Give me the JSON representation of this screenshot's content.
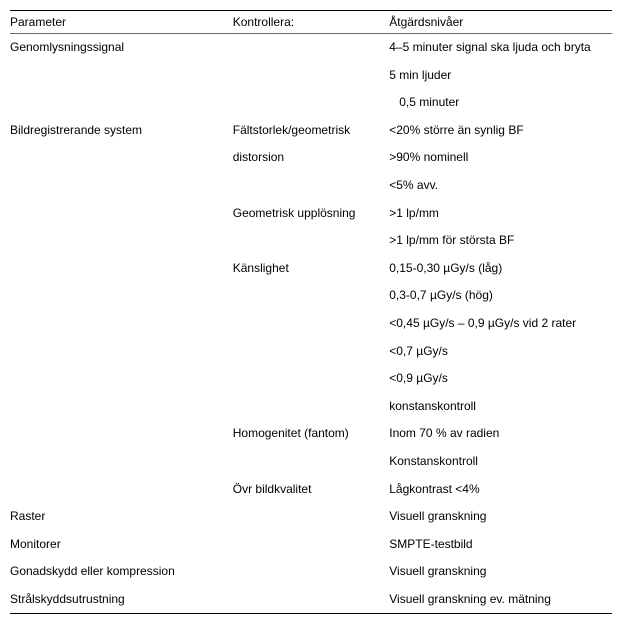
{
  "headers": {
    "parameter": "Parameter",
    "check": "Kontrollera:",
    "action": "Åtgärdsnivåer"
  },
  "rows": [
    {
      "parameter": "Genomlysningssignal",
      "check": "",
      "action": "4–5 minuter signal ska ljuda och bryta"
    },
    {
      "parameter": "",
      "check": "",
      "action": "5 min ljuder"
    },
    {
      "parameter": "",
      "check": "",
      "action": " 0,5 minuter",
      "indent": true
    },
    {
      "parameter": "Bildregistrerande system",
      "check": "Fältstorlek/geometrisk",
      "action": "<20% större än synlig BF"
    },
    {
      "parameter": "",
      "check": "distorsion",
      "action": ">90% nominell"
    },
    {
      "parameter": "",
      "check": "",
      "action": "<5% avv."
    },
    {
      "parameter": "",
      "check": "Geometrisk upplösning",
      "action": ">1 lp/mm"
    },
    {
      "parameter": "",
      "check": "",
      "action": ">1 lp/mm för största BF"
    },
    {
      "parameter": "",
      "check": "Känslighet",
      "action": "0,15-0,30 µGy/s (låg)"
    },
    {
      "parameter": "",
      "check": "",
      "action": "0,3-0,7 µGy/s (hög)"
    },
    {
      "parameter": "",
      "check": "",
      "action": "<0,45 µGy/s – 0,9 µGy/s vid 2 rater"
    },
    {
      "parameter": "",
      "check": "",
      "action": "<0,7 µGy/s"
    },
    {
      "parameter": "",
      "check": "",
      "action": "<0,9 µGy/s"
    },
    {
      "parameter": "",
      "check": "",
      "action": "konstanskontroll"
    },
    {
      "parameter": "",
      "check": "Homogenitet (fantom)",
      "action": "Inom 70 % av radien"
    },
    {
      "parameter": "",
      "check": "",
      "action": "Konstanskontroll"
    },
    {
      "parameter": "",
      "check": "Övr bildkvalitet",
      "action": "Lågkontrast <4%"
    },
    {
      "parameter": "Raster",
      "check": "",
      "action": "Visuell granskning"
    },
    {
      "parameter": "Monitorer",
      "check": "",
      "action": "SMPTE-testbild"
    },
    {
      "parameter": "Gonadskydd eller kompression",
      "check": "",
      "action": "Visuell granskning"
    },
    {
      "parameter": "Strålskyddsutrustning",
      "check": "",
      "action": "Visuell granskning ev. mätning"
    }
  ]
}
